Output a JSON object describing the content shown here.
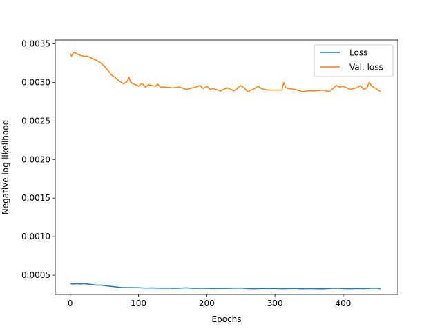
{
  "chart_data": {
    "type": "line",
    "title": "",
    "xlabel": "Epochs",
    "ylabel": "Negative log-likelihood",
    "xlim": [
      -22,
      480
    ],
    "ylim": [
      0.00025,
      0.00355
    ],
    "xticks": [
      {
        "value": 0,
        "label": "0"
      },
      {
        "value": 100,
        "label": "100"
      },
      {
        "value": 200,
        "label": "200"
      },
      {
        "value": 300,
        "label": "300"
      },
      {
        "value": 400,
        "label": "400"
      }
    ],
    "yticks": [
      {
        "value": 0.0005,
        "label": "0.0005"
      },
      {
        "value": 0.001,
        "label": "0.0010"
      },
      {
        "value": 0.0015,
        "label": "0.0015"
      },
      {
        "value": 0.002,
        "label": "0.0020"
      },
      {
        "value": 0.0025,
        "label": "0.0025"
      },
      {
        "value": 0.003,
        "label": "0.0030"
      },
      {
        "value": 0.0035,
        "label": "0.0035"
      }
    ],
    "grid": false,
    "legend_position": "top-right",
    "series": [
      {
        "name": "Loss",
        "color": "#1f77b4",
        "x": [
          0,
          5,
          10,
          15,
          20,
          25,
          30,
          35,
          40,
          45,
          50,
          55,
          60,
          65,
          70,
          75,
          80,
          90,
          100,
          110,
          120,
          130,
          140,
          150,
          160,
          170,
          180,
          190,
          200,
          210,
          220,
          230,
          240,
          250,
          260,
          270,
          280,
          290,
          300,
          310,
          320,
          330,
          340,
          350,
          360,
          370,
          380,
          390,
          400,
          410,
          420,
          430,
          440,
          450,
          455
        ],
        "y": [
          0.00039,
          0.000385,
          0.00039,
          0.000385,
          0.00039,
          0.000385,
          0.00038,
          0.000375,
          0.00037,
          0.000372,
          0.000365,
          0.00036,
          0.000355,
          0.00035,
          0.000345,
          0.00034,
          0.00034,
          0.000338,
          0.000337,
          0.000333,
          0.000335,
          0.000332,
          0.000333,
          0.00033,
          0.000332,
          0.000336,
          0.000329,
          0.000332,
          0.00033,
          0.000327,
          0.000331,
          0.000329,
          0.000332,
          0.000334,
          0.000327,
          0.000325,
          0.000329,
          0.000327,
          0.000329,
          0.000325,
          0.000327,
          0.000329,
          0.000324,
          0.000327,
          0.000325,
          0.000323,
          0.000328,
          0.000332,
          0.000327,
          0.000325,
          0.000328,
          0.000326,
          0.00033,
          0.000332,
          0.000322
        ]
      },
      {
        "name": "Val. loss",
        "color": "#ff7f0e",
        "x": [
          0,
          2,
          5,
          8,
          10,
          15,
          20,
          25,
          30,
          35,
          40,
          45,
          50,
          55,
          60,
          65,
          70,
          75,
          78,
          80,
          84,
          86,
          88,
          92,
          96,
          100,
          105,
          110,
          115,
          120,
          125,
          128,
          132,
          140,
          150,
          160,
          170,
          180,
          190,
          195,
          200,
          205,
          210,
          220,
          230,
          240,
          250,
          255,
          260,
          270,
          275,
          280,
          290,
          300,
          310,
          313,
          316,
          320,
          330,
          340,
          350,
          360,
          370,
          380,
          390,
          395,
          400,
          410,
          420,
          425,
          430,
          435,
          438,
          442,
          448,
          455
        ],
        "y": [
          0.00337,
          0.00334,
          0.00339,
          0.00338,
          0.00337,
          0.00335,
          0.00334,
          0.00334,
          0.00332,
          0.0033,
          0.00328,
          0.00325,
          0.00321,
          0.00316,
          0.0031,
          0.00307,
          0.00303,
          0.003,
          0.00298,
          0.00299,
          0.00302,
          0.00307,
          0.00301,
          0.00298,
          0.00297,
          0.00295,
          0.00299,
          0.00294,
          0.00297,
          0.00296,
          0.00295,
          0.00298,
          0.00294,
          0.00294,
          0.00293,
          0.00294,
          0.00291,
          0.00293,
          0.00296,
          0.00292,
          0.00295,
          0.00291,
          0.00292,
          0.00289,
          0.00293,
          0.00289,
          0.00296,
          0.00293,
          0.00288,
          0.00292,
          0.00295,
          0.00292,
          0.0029,
          0.0029,
          0.0029,
          0.003,
          0.00293,
          0.00292,
          0.00291,
          0.00288,
          0.00289,
          0.00289,
          0.0029,
          0.00288,
          0.00296,
          0.00294,
          0.00295,
          0.00291,
          0.00293,
          0.00296,
          0.00291,
          0.00293,
          0.003,
          0.00295,
          0.00292,
          0.00288
        ]
      }
    ]
  }
}
